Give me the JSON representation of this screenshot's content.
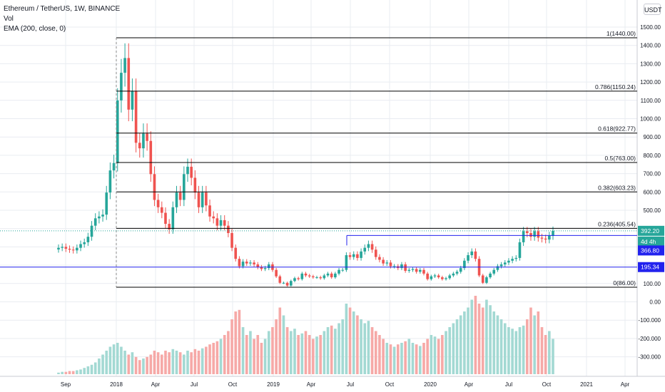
{
  "legend": {
    "symbol": "Ethereum / TetherUS, 1W, BINANCE",
    "vol": "Vol",
    "ema": "EMA (200, close, 0)"
  },
  "price_scale_unit": "USDT",
  "colors": {
    "up": "#26a69a",
    "down": "#ef5350",
    "up_vol": "#a3d9d3",
    "down_vol": "#f6a9a7",
    "fib_line": "#000000",
    "blue_line": "#2222ee",
    "price_tag": "#26a69a",
    "blue_tag": "#2222ee",
    "grid": "#e9ecf1"
  },
  "chart_data": {
    "type": "candlestick",
    "title": "Ethereum / TetherUS, 1W, BINANCE",
    "price_axis_ticks": [
      "1500.00",
      "1400.00",
      "1300.00",
      "1200.00",
      "1100.00",
      "1000.00",
      "900.00",
      "800.00",
      "700.00",
      "600.00",
      "500.00",
      "400.00",
      "300.00",
      "200.00",
      "100.00",
      "0.00",
      "-100.000",
      "-200.000",
      "-300.000"
    ],
    "time_axis_ticks": [
      "Sep",
      "2018",
      "Apr",
      "Jul",
      "Oct",
      "2019",
      "Apr",
      "Jul",
      "Oct",
      "2020",
      "Apr",
      "Jul",
      "Oct",
      "2021",
      "Apr"
    ],
    "fib_levels": [
      {
        "label": "1(1440.00)",
        "value": 1440.0
      },
      {
        "label": "0.786(1150.24)",
        "value": 1150.24
      },
      {
        "label": "0.618(922.77)",
        "value": 922.77
      },
      {
        "label": "0.5(763.00)",
        "value": 763.0
      },
      {
        "label": "0.382(603.23)",
        "value": 603.23
      },
      {
        "label": "0.236(405.54)",
        "value": 405.54
      },
      {
        "label": "0(86.00)",
        "value": 86.0
      }
    ],
    "horizontal_lines": [
      {
        "value": 366.8,
        "label": "366.80"
      },
      {
        "value": 195.34,
        "label": "195.34"
      }
    ],
    "last_price": "392.20",
    "countdown": "4d 4h",
    "closes": [
      300,
      305,
      295,
      290,
      286,
      300,
      320,
      330,
      360,
      420,
      460,
      470,
      480,
      600,
      720,
      760,
      1100,
      1250,
      1330,
      1050,
      1150,
      870,
      840,
      920,
      880,
      700,
      560,
      520,
      490,
      430,
      400,
      520,
      600,
      560,
      700,
      740,
      680,
      600,
      520,
      600,
      530,
      470,
      460,
      420,
      450,
      420,
      380,
      300,
      240,
      200,
      225,
      215,
      220,
      210,
      195,
      185,
      190,
      210,
      180,
      145,
      110,
      110,
      95,
      120,
      135,
      130,
      160,
      150,
      145,
      140,
      140,
      135,
      150,
      160,
      140,
      160,
      180,
      180,
      260,
      250,
      265,
      245,
      280,
      300,
      320,
      290,
      250,
      235,
      215,
      220,
      200,
      200,
      190,
      210,
      175,
      180,
      185,
      170,
      180,
      160,
      130,
      145,
      150,
      140,
      130,
      135,
      150,
      160,
      170,
      190,
      230,
      260,
      280,
      240,
      150,
      110,
      140,
      160,
      180,
      200,
      210,
      220,
      230,
      240,
      245,
      330,
      390,
      380,
      360,
      390,
      355,
      350,
      345,
      365,
      392
    ],
    "volumes_relative": [
      0.02,
      0.03,
      0.03,
      0.04,
      0.04,
      0.05,
      0.06,
      0.08,
      0.1,
      0.12,
      0.15,
      0.2,
      0.25,
      0.3,
      0.35,
      0.38,
      0.4,
      0.35,
      0.3,
      0.25,
      0.28,
      0.22,
      0.18,
      0.2,
      0.22,
      0.25,
      0.3,
      0.28,
      0.25,
      0.3,
      0.28,
      0.32,
      0.3,
      0.28,
      0.25,
      0.3,
      0.28,
      0.32,
      0.3,
      0.33,
      0.35,
      0.38,
      0.4,
      0.42,
      0.45,
      0.5,
      0.55,
      0.7,
      0.8,
      0.82,
      0.6,
      0.5,
      0.55,
      0.45,
      0.5,
      0.4,
      0.45,
      0.55,
      0.6,
      0.7,
      0.85,
      0.75,
      0.6,
      0.55,
      0.58,
      0.5,
      0.52,
      0.55,
      0.5,
      0.45,
      0.48,
      0.5,
      0.55,
      0.6,
      0.62,
      0.58,
      0.65,
      0.7,
      0.9,
      0.85,
      0.8,
      0.75,
      0.7,
      0.65,
      0.68,
      0.6,
      0.55,
      0.5,
      0.45,
      0.4,
      0.38,
      0.35,
      0.38,
      0.4,
      0.42,
      0.45,
      0.4,
      0.38,
      0.36,
      0.4,
      0.45,
      0.5,
      0.48,
      0.45,
      0.5,
      0.55,
      0.6,
      0.65,
      0.7,
      0.75,
      0.8,
      0.85,
      0.95,
      1.0,
      0.9,
      0.85,
      0.95,
      0.88,
      0.8,
      0.75,
      0.7,
      0.65,
      0.6,
      0.58,
      0.55,
      0.6,
      0.62,
      0.7,
      0.85,
      0.75,
      0.8,
      0.6,
      0.5,
      0.55,
      0.45
    ]
  }
}
